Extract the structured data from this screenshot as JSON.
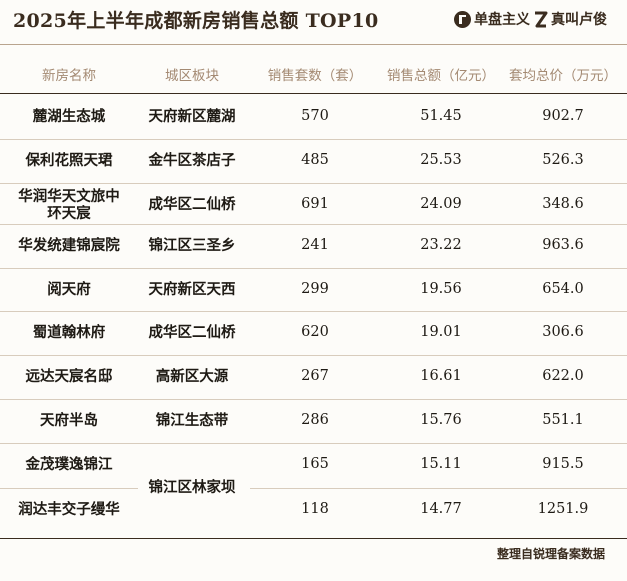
{
  "title": "2025年上半年成都新房销售总额 TOP10",
  "brands": [
    {
      "name": "单盘主义",
      "icon": "circle-one-logo-icon"
    },
    {
      "name": "真叫卢俊",
      "icon": "z-logo-icon"
    }
  ],
  "columns": [
    "新房名称",
    "城区板块",
    "销售套数（套）",
    "销售总额（亿元）",
    "套均总价（万元）"
  ],
  "rows": [
    {
      "name": "麓湖生态城",
      "area": "天府新区麓湖",
      "units": "570",
      "sales": "51.45",
      "avg": "902.7"
    },
    {
      "name": "保利花照天珺",
      "area": "金牛区茶店子",
      "units": "485",
      "sales": "25.53",
      "avg": "526.3"
    },
    {
      "name": "华润华天文旅中环天宸",
      "area": "成华区二仙桥",
      "units": "691",
      "sales": "24.09",
      "avg": "348.6"
    },
    {
      "name": "华发统建锦宸院",
      "area": "锦江区三圣乡",
      "units": "241",
      "sales": "23.22",
      "avg": "963.6"
    },
    {
      "name": "阅天府",
      "area": "天府新区天西",
      "units": "299",
      "sales": "19.56",
      "avg": "654.0"
    },
    {
      "name": "蜀道翰林府",
      "area": "成华区二仙桥",
      "units": "620",
      "sales": "19.01",
      "avg": "306.6"
    },
    {
      "name": "远达天宸名邸",
      "area": "高新区大源",
      "units": "267",
      "sales": "16.61",
      "avg": "622.0"
    },
    {
      "name": "天府半岛",
      "area": "锦江生态带",
      "units": "286",
      "sales": "15.76",
      "avg": "551.1"
    },
    {
      "name": "金茂璞逸锦江",
      "area": "锦江区林家坝",
      "units": "165",
      "sales": "15.11",
      "avg": "915.5"
    },
    {
      "name": "润达丰交子缦华",
      "area": "",
      "units": "118",
      "sales": "14.77",
      "avg": "1251.9"
    }
  ],
  "footer": "整理自锐理备案数据",
  "colors": {
    "accent": "#3a2c1f",
    "header_text": "#a48a73",
    "rule": "#d8ccbd"
  }
}
